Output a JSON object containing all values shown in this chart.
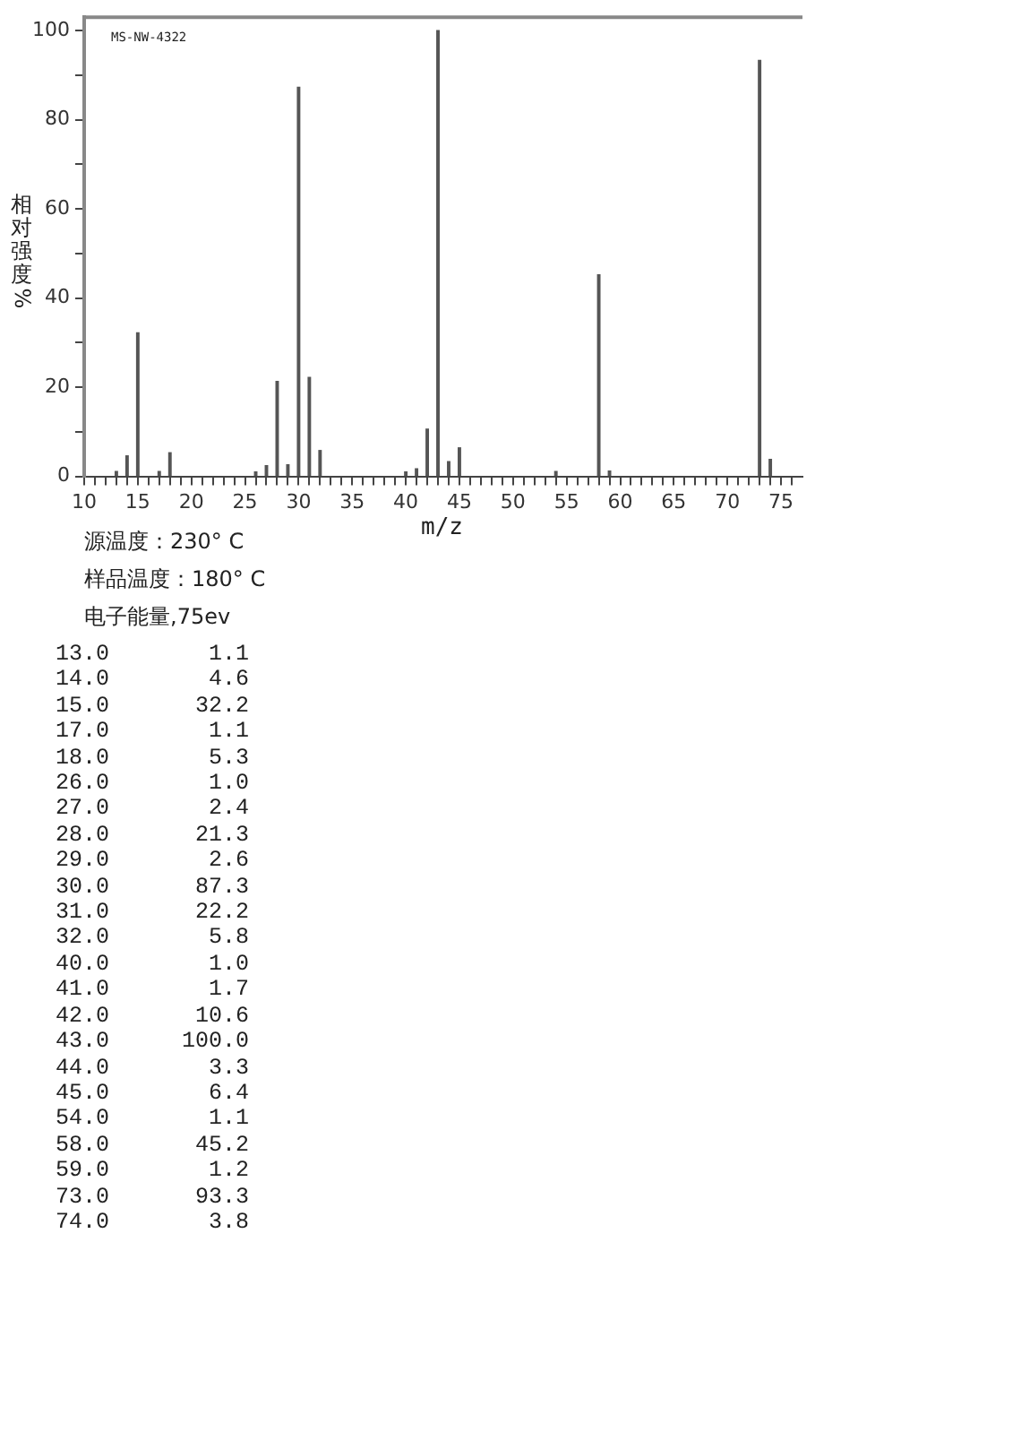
{
  "chart_data": {
    "type": "bar",
    "title": "MS-NW-4322",
    "xlabel": "m/z",
    "ylabel": "相对强度%",
    "x": [
      13,
      14,
      15,
      17,
      18,
      26,
      27,
      28,
      29,
      30,
      31,
      32,
      40,
      41,
      42,
      43,
      44,
      45,
      54,
      58,
      59,
      73,
      74
    ],
    "values": [
      1.1,
      4.6,
      32.2,
      1.1,
      5.3,
      1.0,
      2.4,
      21.3,
      2.6,
      87.3,
      22.2,
      5.8,
      1.0,
      1.7,
      10.6,
      100.0,
      3.3,
      6.4,
      1.1,
      45.2,
      1.2,
      93.3,
      3.8
    ],
    "color": "#555555",
    "xlim": [
      10,
      77
    ],
    "xticks": [
      10,
      {
        "value": 11,
        "label": null
      },
      {
        "value": 12,
        "label": null
      },
      {
        "value": 13,
        "label": null
      },
      {
        "value": 14,
        "label": null
      },
      15,
      {
        "value": 16,
        "label": null
      },
      {
        "value": 17,
        "label": null
      },
      {
        "value": 18,
        "label": null
      },
      {
        "value": 19,
        "label": null
      },
      20,
      {
        "value": 21,
        "label": null
      },
      {
        "value": 22,
        "label": null
      },
      {
        "value": 23,
        "label": null
      },
      {
        "value": 24,
        "label": null
      },
      25,
      {
        "value": 26,
        "label": null
      },
      {
        "value": 27,
        "label": null
      },
      {
        "value": 28,
        "label": null
      },
      {
        "value": 29,
        "label": null
      },
      30,
      {
        "value": 31,
        "label": null
      },
      {
        "value": 32,
        "label": null
      },
      {
        "value": 33,
        "label": null
      },
      {
        "value": 34,
        "label": null
      },
      35,
      {
        "value": 36,
        "label": null
      },
      {
        "value": 37,
        "label": null
      },
      {
        "value": 38,
        "label": null
      },
      {
        "value": 39,
        "label": null
      },
      40,
      {
        "value": 41,
        "label": null
      },
      {
        "value": 42,
        "label": null
      },
      {
        "value": 43,
        "label": null
      },
      {
        "value": 44,
        "label": null
      },
      45,
      {
        "value": 46,
        "label": null
      },
      {
        "value": 47,
        "label": null
      },
      {
        "value": 48,
        "label": null
      },
      {
        "value": 49,
        "label": null
      },
      50,
      {
        "value": 51,
        "label": null
      },
      {
        "value": 52,
        "label": null
      },
      {
        "value": 53,
        "label": null
      },
      {
        "value": 54,
        "label": null
      },
      55,
      {
        "value": 56,
        "label": null
      },
      {
        "value": 57,
        "label": null
      },
      {
        "value": 58,
        "label": null
      },
      {
        "value": 59,
        "label": null
      },
      60,
      {
        "value": 61,
        "label": null
      },
      {
        "value": 62,
        "label": null
      },
      {
        "value": 63,
        "label": null
      },
      {
        "value": 64,
        "label": null
      },
      65,
      {
        "value": 66,
        "label": null
      },
      {
        "value": 67,
        "label": null
      },
      {
        "value": 68,
        "label": null
      },
      {
        "value": 69,
        "label": null
      },
      70,
      {
        "value": 71,
        "label": null
      },
      {
        "value": 72,
        "label": null
      },
      {
        "value": 73,
        "label": null
      },
      {
        "value": 74,
        "label": null
      },
      75,
      {
        "value": 76,
        "label": null
      }
    ],
    "ylim": [
      0,
      103
    ],
    "yticks": [
      0,
      {
        "value": 10,
        "label": null
      },
      20,
      {
        "value": 30,
        "label": null
      },
      40,
      {
        "value": 50,
        "label": null
      },
      60,
      {
        "value": 70,
        "label": null
      },
      80,
      {
        "value": 90,
        "label": null
      },
      100
    ],
    "grid": false,
    "legend": false,
    "annotations": [
      "源温度：230° C",
      "样品温度：180° C",
      "电子能量,75ev",
      "13.0",
      "1.1",
      "14.0",
      "4.6",
      "15.0",
      "32.2",
      "17.0",
      "1.1",
      "18.0",
      "5.3",
      "26.0",
      "1.0",
      "27.0",
      "2.4",
      "28.0",
      "21.3",
      "29.0",
      "2.6",
      "30.0",
      "87.3",
      "31.0",
      "22.2",
      "32.0",
      "5.8",
      "40.0",
      "1.0",
      "41.0",
      "1.7",
      "42.0",
      "10.6",
      "43.0",
      "100.0",
      "44.0",
      "3.3",
      "45.0",
      "6.4",
      "54.0",
      "1.1",
      "58.0",
      "45.2",
      "59.0",
      "1.2",
      "73.0",
      "93.3",
      "74.0",
      "3.8"
    ]
  }
}
